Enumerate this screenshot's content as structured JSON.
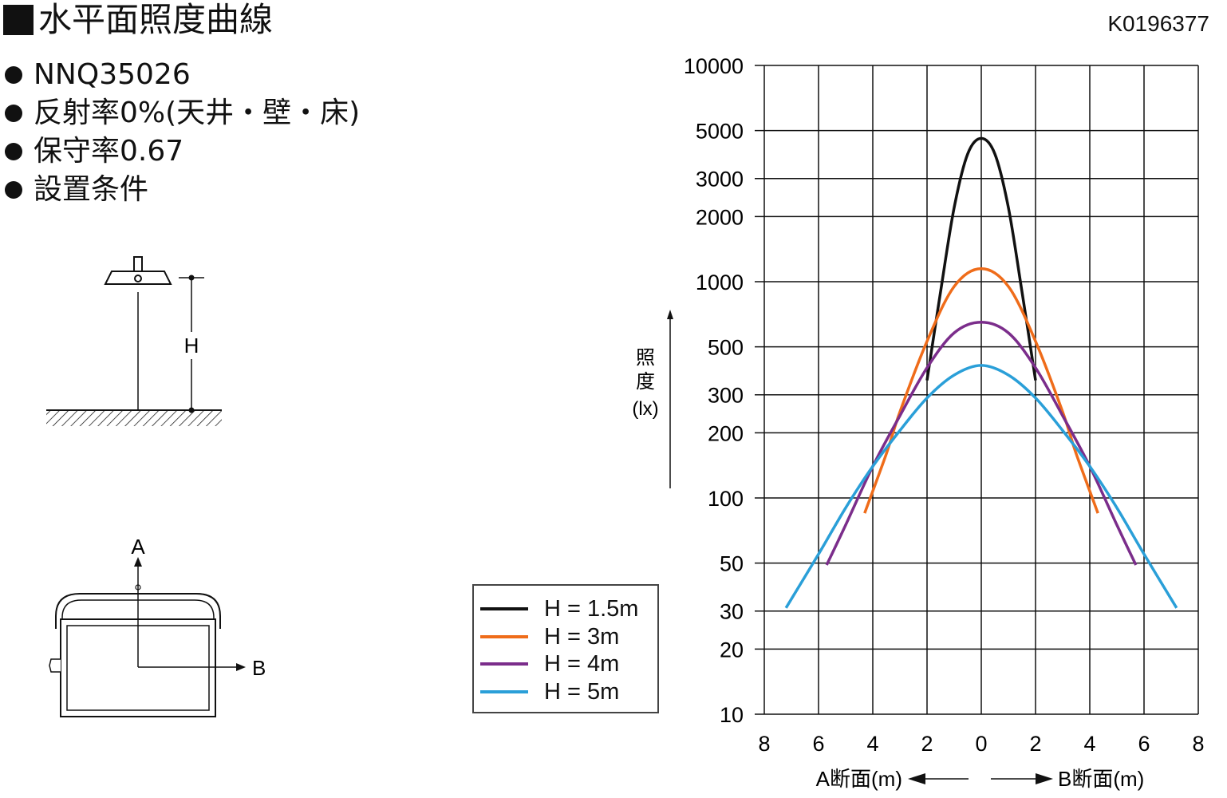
{
  "header": {
    "title": "水平面照度曲線",
    "code": "K0196377"
  },
  "specs": [
    "NNQ35026",
    "反射率0%(天井・壁・床)",
    "保守率0.67",
    "設置条件"
  ],
  "diagram": {
    "height_label": "H",
    "axis_a_label": "A",
    "axis_b_label": "B"
  },
  "chart_data": {
    "type": "line",
    "y_scale": "log",
    "ylim": [
      10,
      10000
    ],
    "xlim": [
      -8,
      8
    ],
    "y_ticks": [
      10,
      20,
      30,
      50,
      100,
      200,
      300,
      500,
      1000,
      2000,
      3000,
      5000,
      10000
    ],
    "y_tick_labels": [
      "10",
      "20",
      "30",
      "50",
      "100",
      "200",
      "300",
      "500",
      "1000",
      "2000",
      "3000",
      "5000",
      "10000"
    ],
    "x_ticks": [
      -8,
      -6,
      -4,
      -2,
      0,
      2,
      4,
      6,
      8
    ],
    "x_tick_labels": [
      "8",
      "6",
      "4",
      "2",
      "0",
      "2",
      "4",
      "6",
      "8"
    ],
    "ylabel": [
      "照",
      "度",
      "(lx)"
    ],
    "xlabel_left": "A断面(m)",
    "xlabel_right": "B断面(m)",
    "grid": true,
    "legend_position": "left-bottom",
    "series": [
      {
        "name": "H = 1.5m",
        "color": "#111111",
        "x": [
          -2.0,
          -1.5,
          -1.0,
          -0.5,
          0,
          0.5,
          1.0,
          1.5,
          2.0
        ],
        "y": [
          350,
          900,
          2200,
          3900,
          4600,
          3900,
          2200,
          900,
          350
        ]
      },
      {
        "name": "H = 3m",
        "color": "#ef6c1a",
        "x": [
          -4.3,
          -3.5,
          -3.0,
          -2.0,
          -1.0,
          0,
          1.0,
          2.0,
          3.0,
          3.5,
          4.3
        ],
        "y": [
          85,
          160,
          250,
          530,
          950,
          1150,
          950,
          530,
          250,
          160,
          85
        ]
      },
      {
        "name": "H = 4m",
        "color": "#7b2d8b",
        "x": [
          -5.7,
          -5.0,
          -4.0,
          -3.0,
          -2.0,
          -1.0,
          0,
          1.0,
          2.0,
          3.0,
          4.0,
          5.0,
          5.7
        ],
        "y": [
          49,
          75,
          140,
          240,
          400,
          580,
          650,
          580,
          400,
          240,
          140,
          75,
          49
        ]
      },
      {
        "name": "H = 5m",
        "color": "#2a9fd8",
        "x": [
          -7.2,
          -6.0,
          -5.0,
          -4.0,
          -3.0,
          -2.0,
          -1.0,
          0,
          1.0,
          2.0,
          3.0,
          4.0,
          5.0,
          6.0,
          7.2
        ],
        "y": [
          31,
          55,
          90,
          140,
          205,
          290,
          370,
          410,
          370,
          290,
          205,
          140,
          90,
          55,
          31
        ]
      }
    ]
  }
}
